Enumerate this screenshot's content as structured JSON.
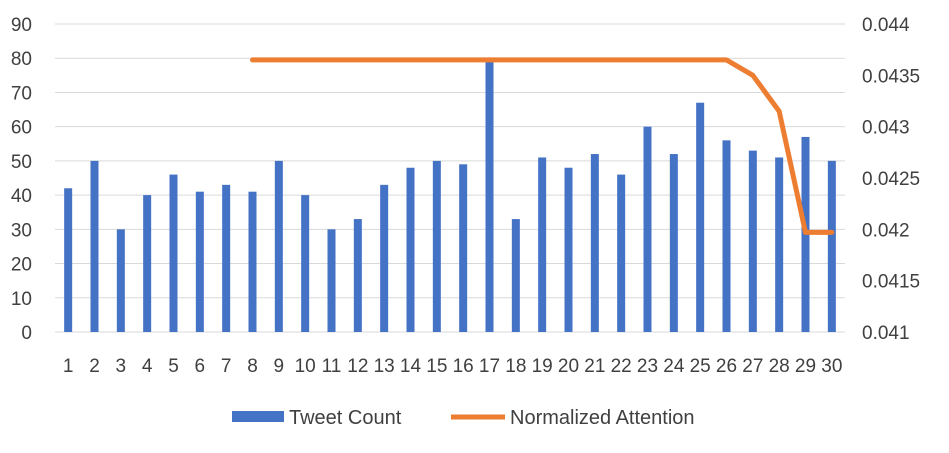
{
  "chart_data": {
    "type": "bar",
    "title": "",
    "xlabel": "",
    "ylabel": "",
    "categories": [
      "1",
      "2",
      "3",
      "4",
      "5",
      "6",
      "7",
      "8",
      "9",
      "10",
      "11",
      "12",
      "13",
      "14",
      "15",
      "16",
      "17",
      "18",
      "19",
      "20",
      "21",
      "22",
      "23",
      "24",
      "25",
      "26",
      "27",
      "28",
      "29",
      "30"
    ],
    "series": [
      {
        "name": "Tweet Count",
        "type": "bar",
        "axis": "left",
        "color": "#4472c4",
        "values": [
          42,
          50,
          30,
          40,
          46,
          41,
          43,
          41,
          50,
          40,
          30,
          33,
          43,
          48,
          50,
          49,
          80,
          33,
          51,
          48,
          52,
          46,
          60,
          52,
          67,
          56,
          53,
          51,
          57,
          50
        ]
      },
      {
        "name": "Normalized Attention",
        "type": "line",
        "axis": "right",
        "color": "#ed7d31",
        "values": [
          null,
          null,
          null,
          null,
          null,
          null,
          null,
          0.04365,
          0.04365,
          0.04365,
          0.04365,
          0.04365,
          0.04365,
          0.04365,
          0.04365,
          0.04365,
          0.04365,
          0.04365,
          0.04365,
          0.04365,
          0.04365,
          0.04365,
          0.04365,
          0.04365,
          0.04365,
          0.04365,
          0.0435,
          0.04315,
          0.04197,
          0.04197
        ]
      }
    ],
    "y_left": {
      "min": 0,
      "max": 90,
      "step": 10,
      "tick_labels": [
        "0",
        "10",
        "20",
        "30",
        "40",
        "50",
        "60",
        "70",
        "80",
        "90"
      ]
    },
    "y_right": {
      "min": 0.041,
      "max": 0.044,
      "step": 0.0005,
      "tick_labels": [
        "0.041",
        "0.0415",
        "0.042",
        "0.0425",
        "0.043",
        "0.0435",
        "0.044"
      ]
    },
    "grid": true,
    "legend_position": "bottom"
  }
}
